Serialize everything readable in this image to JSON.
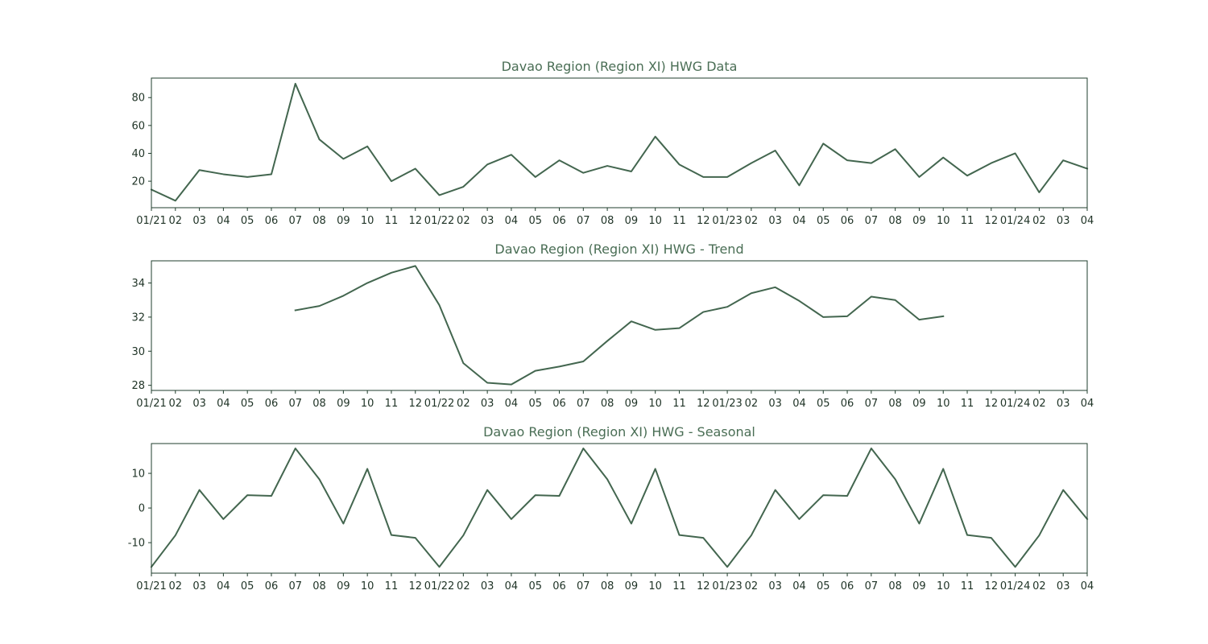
{
  "colors": {
    "line": "#43664f",
    "axes": "#1f3d2c",
    "title": "#4a6e55",
    "tick_text": "#1f3326"
  },
  "x_tick_labels": [
    "01/21",
    "02",
    "03",
    "04",
    "05",
    "06",
    "07",
    "08",
    "09",
    "10",
    "11",
    "12",
    "01/22",
    "02",
    "03",
    "04",
    "05",
    "06",
    "07",
    "08",
    "09",
    "10",
    "11",
    "12",
    "01/23",
    "02",
    "03",
    "04",
    "05",
    "06",
    "07",
    "08",
    "09",
    "10",
    "11",
    "12",
    "01/24",
    "02",
    "03",
    "04"
  ],
  "chart_data": [
    {
      "type": "line",
      "title": "Davao Region (Region XI) HWG Data",
      "x": [
        "2021-01",
        "2021-02",
        "2021-03",
        "2021-04",
        "2021-05",
        "2021-06",
        "2021-07",
        "2021-08",
        "2021-09",
        "2021-10",
        "2021-11",
        "2021-12",
        "2022-01",
        "2022-02",
        "2022-03",
        "2022-04",
        "2022-05",
        "2022-06",
        "2022-07",
        "2022-08",
        "2022-09",
        "2022-10",
        "2022-11",
        "2022-12",
        "2023-01",
        "2023-02",
        "2023-03",
        "2023-04",
        "2023-05",
        "2023-06",
        "2023-07",
        "2023-08",
        "2023-09",
        "2023-10",
        "2023-11",
        "2023-12",
        "2024-01",
        "2024-02",
        "2024-03",
        "2024-04"
      ],
      "values": [
        14,
        6,
        28,
        25,
        23,
        25,
        90,
        50,
        36,
        45,
        20,
        29,
        10,
        16,
        32,
        39,
        23,
        35,
        26,
        31,
        27,
        52,
        32,
        23,
        23,
        33,
        42,
        17,
        47,
        35,
        33,
        43,
        23,
        37,
        24,
        33,
        40,
        12,
        35,
        29
      ],
      "ylim": [
        1,
        94
      ],
      "yticks": [
        20,
        40,
        60,
        80
      ],
      "grid": false
    },
    {
      "type": "line",
      "title": "Davao Region (Region XI) HWG - Trend",
      "x": [
        "2021-01",
        "2021-02",
        "2021-03",
        "2021-04",
        "2021-05",
        "2021-06",
        "2021-07",
        "2021-08",
        "2021-09",
        "2021-10",
        "2021-11",
        "2021-12",
        "2022-01",
        "2022-02",
        "2022-03",
        "2022-04",
        "2022-05",
        "2022-06",
        "2022-07",
        "2022-08",
        "2022-09",
        "2022-10",
        "2022-11",
        "2022-12",
        "2023-01",
        "2023-02",
        "2023-03",
        "2023-04",
        "2023-05",
        "2023-06",
        "2023-07",
        "2023-08",
        "2023-09",
        "2023-10",
        "2023-11",
        "2023-12",
        "2024-01",
        "2024-02",
        "2024-03",
        "2024-04"
      ],
      "values": [
        null,
        null,
        null,
        null,
        null,
        null,
        32.4,
        32.65,
        33.25,
        34.0,
        34.6,
        35.0,
        32.7,
        29.3,
        28.15,
        28.05,
        28.85,
        29.1,
        29.4,
        30.6,
        31.75,
        31.25,
        31.35,
        32.3,
        32.6,
        33.4,
        33.75,
        32.95,
        32.0,
        32.05,
        33.2,
        33.0,
        31.85,
        32.05,
        null,
        null,
        null,
        null,
        null,
        null
      ],
      "ylim": [
        27.7,
        35.3
      ],
      "yticks": [
        28,
        30,
        32,
        34
      ],
      "grid": false
    },
    {
      "type": "line",
      "title": "Davao Region (Region XI) HWG - Seasonal",
      "x": [
        "2021-01",
        "2021-02",
        "2021-03",
        "2021-04",
        "2021-05",
        "2021-06",
        "2021-07",
        "2021-08",
        "2021-09",
        "2021-10",
        "2021-11",
        "2021-12",
        "2022-01",
        "2022-02",
        "2022-03",
        "2022-04",
        "2022-05",
        "2022-06",
        "2022-07",
        "2022-08",
        "2022-09",
        "2022-10",
        "2022-11",
        "2022-12",
        "2023-01",
        "2023-02",
        "2023-03",
        "2023-04",
        "2023-05",
        "2023-06",
        "2023-07",
        "2023-08",
        "2023-09",
        "2023-10",
        "2023-11",
        "2023-12",
        "2024-01",
        "2024-02",
        "2024-03",
        "2024-04"
      ],
      "values": [
        -17.0,
        -7.9,
        5.2,
        -3.2,
        3.7,
        3.5,
        17.2,
        8.3,
        -4.5,
        11.3,
        -7.8,
        -8.6,
        -17.0,
        -7.9,
        5.2,
        -3.2,
        3.7,
        3.5,
        17.2,
        8.3,
        -4.5,
        11.3,
        -7.8,
        -8.6,
        -17.0,
        -7.9,
        5.2,
        -3.2,
        3.7,
        3.5,
        17.2,
        8.3,
        -4.5,
        11.3,
        -7.8,
        -8.6,
        -17.0,
        -7.9,
        5.2,
        -3.2
      ],
      "ylim": [
        -18.8,
        18.6
      ],
      "yticks": [
        -10,
        0,
        10
      ],
      "grid": false
    }
  ]
}
